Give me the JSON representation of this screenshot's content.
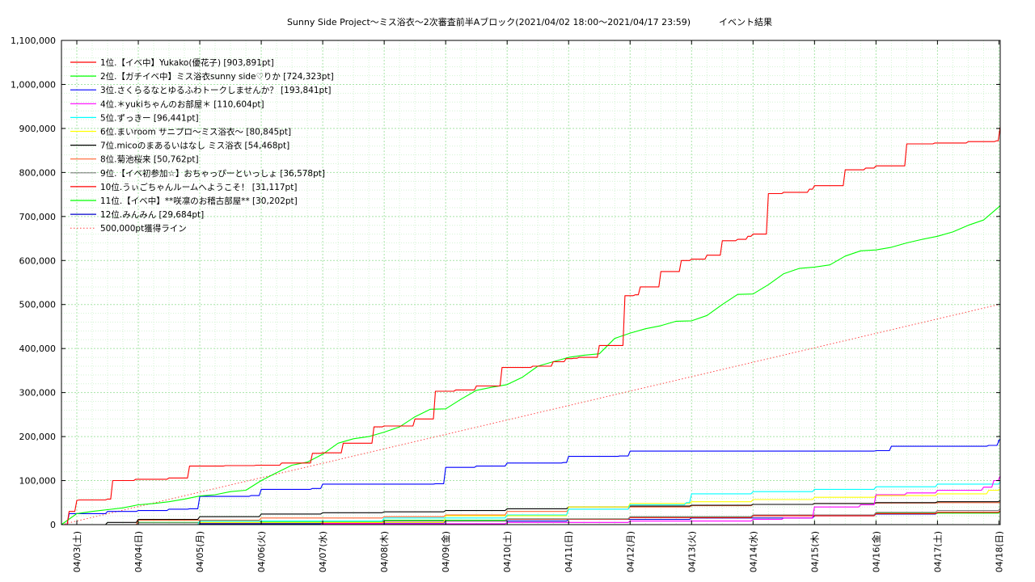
{
  "chart_data": {
    "type": "line",
    "title": "Sunny Side Project～ミス浴衣～2次審査前半Aブロック(2021/04/02 18:00～2021/04/17 23:59)          イベント結果",
    "xlabel": "",
    "ylabel": "",
    "ylim": [
      0,
      1100000
    ],
    "xlim": [
      "2021-04-02 18:00",
      "2021-04-18 00:30"
    ],
    "grid": true,
    "legend_position": "top-left",
    "y_ticks": [
      "0",
      "100,000",
      "200,000",
      "300,000",
      "400,000",
      "500,000",
      "600,000",
      "700,000",
      "800,000",
      "900,000",
      "1,000,000",
      "1,100,000"
    ],
    "x_ticks": [
      "04/03(土)",
      "04/04(日)",
      "04/05(月)",
      "04/06(火)",
      "04/07(水)",
      "04/08(木)",
      "04/09(金)",
      "04/10(土)",
      "04/11(日)",
      "04/12(月)",
      "04/13(火)",
      "04/14(水)",
      "04/15(木)",
      "04/16(金)",
      "04/17(土)",
      "04/18(日)"
    ],
    "x_tick_dates": [
      "2021-04-03",
      "2021-04-04",
      "2021-04-05",
      "2021-04-06",
      "2021-04-07",
      "2021-04-08",
      "2021-04-09",
      "2021-04-10",
      "2021-04-11",
      "2021-04-12",
      "2021-04-13",
      "2021-04-14",
      "2021-04-15",
      "2021-04-16",
      "2021-04-17",
      "2021-04-18"
    ],
    "series": [
      {
        "name": "1位.【イベ中】Yukako(優花子) [903,891pt]",
        "color": "#ff0000",
        "style": "step",
        "x": [
          "2021-04-02 18:00",
          "2021-04-02 21:00",
          "2021-04-03 00:00",
          "2021-04-03 01:00",
          "2021-04-03 12:00",
          "2021-04-03 14:00",
          "2021-04-03 23:00",
          "2021-04-04 12:00",
          "2021-04-04 20:00",
          "2021-04-05 10:00",
          "2021-04-05 22:00",
          "2021-04-06 08:00",
          "2021-04-06 20:00",
          "2021-04-07 00:00",
          "2021-04-07 08:00",
          "2021-04-07 20:00",
          "2021-04-08 00:00",
          "2021-04-08 12:00",
          "2021-04-08 20:00",
          "2021-04-09 04:00",
          "2021-04-09 12:00",
          "2021-04-09 22:00",
          "2021-04-10 10:00",
          "2021-04-10 18:00",
          "2021-04-10 23:00",
          "2021-04-11 02:00",
          "2021-04-11 04:00",
          "2021-04-11 12:00",
          "2021-04-11 22:00",
          "2021-04-12 02:00",
          "2021-04-12 04:00",
          "2021-04-12 12:00",
          "2021-04-12 20:00",
          "2021-04-13 00:00",
          "2021-04-13 06:00",
          "2021-04-13 12:00",
          "2021-04-13 18:00",
          "2021-04-13 22:00",
          "2021-04-14 00:00",
          "2021-04-14 06:00",
          "2021-04-14 12:00",
          "2021-04-14 22:00",
          "2021-04-15 00:00",
          "2021-04-15 12:00",
          "2021-04-15 20:00",
          "2021-04-16 00:00",
          "2021-04-16 12:00",
          "2021-04-16 23:00",
          "2021-04-17 12:00",
          "2021-04-17 23:00",
          "2021-04-18 00:30"
        ],
        "values": [
          0,
          30000,
          55000,
          56000,
          58000,
          100000,
          103000,
          106000,
          133000,
          134000,
          135000,
          140000,
          162000,
          163000,
          185000,
          222000,
          224000,
          240000,
          303000,
          306000,
          315000,
          357000,
          360000,
          370000,
          377000,
          378000,
          380000,
          407000,
          520000,
          522000,
          540000,
          575000,
          600000,
          603000,
          612000,
          645000,
          648000,
          655000,
          660000,
          752000,
          755000,
          762000,
          770000,
          806000,
          810000,
          815000,
          865000,
          867000,
          870000,
          872000,
          903891
        ]
      },
      {
        "name": "2位.【ガチイベ中】ミス浴衣sunny side♡りか [724,323pt]",
        "color": "#00ff00",
        "style": "smooth",
        "x": [
          "2021-04-02 18:00",
          "2021-04-03 00:00",
          "2021-04-03 06:00",
          "2021-04-03 12:00",
          "2021-04-03 18:00",
          "2021-04-04 00:00",
          "2021-04-04 06:00",
          "2021-04-04 12:00",
          "2021-04-04 18:00",
          "2021-04-05 00:00",
          "2021-04-05 06:00",
          "2021-04-05 12:00",
          "2021-04-05 18:00",
          "2021-04-06 00:00",
          "2021-04-06 06:00",
          "2021-04-06 12:00",
          "2021-04-06 18:00",
          "2021-04-07 00:00",
          "2021-04-07 06:00",
          "2021-04-07 12:00",
          "2021-04-07 18:00",
          "2021-04-08 00:00",
          "2021-04-08 06:00",
          "2021-04-08 12:00",
          "2021-04-08 18:00",
          "2021-04-09 00:00",
          "2021-04-09 06:00",
          "2021-04-09 12:00",
          "2021-04-09 18:00",
          "2021-04-10 00:00",
          "2021-04-10 06:00",
          "2021-04-10 12:00",
          "2021-04-10 18:00",
          "2021-04-11 00:00",
          "2021-04-11 06:00",
          "2021-04-11 12:00",
          "2021-04-11 18:00",
          "2021-04-12 00:00",
          "2021-04-12 06:00",
          "2021-04-12 12:00",
          "2021-04-12 18:00",
          "2021-04-13 00:00",
          "2021-04-13 06:00",
          "2021-04-13 12:00",
          "2021-04-13 18:00",
          "2021-04-14 00:00",
          "2021-04-14 06:00",
          "2021-04-14 12:00",
          "2021-04-14 18:00",
          "2021-04-15 00:00",
          "2021-04-15 06:00",
          "2021-04-15 12:00",
          "2021-04-15 18:00",
          "2021-04-16 00:00",
          "2021-04-16 06:00",
          "2021-04-16 12:00",
          "2021-04-16 18:00",
          "2021-04-17 00:00",
          "2021-04-17 06:00",
          "2021-04-17 12:00",
          "2021-04-17 18:00",
          "2021-04-18 00:30"
        ],
        "values": [
          0,
          25000,
          30000,
          34000,
          38000,
          45000,
          48000,
          52000,
          58000,
          65000,
          68000,
          75000,
          78000,
          100000,
          118000,
          135000,
          142000,
          160000,
          185000,
          195000,
          200000,
          210000,
          222000,
          245000,
          262000,
          263000,
          285000,
          305000,
          312000,
          318000,
          335000,
          360000,
          370000,
          380000,
          385000,
          388000,
          423000,
          435000,
          445000,
          452000,
          462000,
          463000,
          475000,
          500000,
          523000,
          524000,
          545000,
          570000,
          582000,
          585000,
          590000,
          610000,
          622000,
          624000,
          630000,
          640000,
          648000,
          655000,
          665000,
          680000,
          692000,
          724323
        ]
      },
      {
        "name": "3位.さくらるなとゆるふわトークしませんか？ [193,841pt]",
        "color": "#0000ff",
        "style": "step",
        "x": [
          "2021-04-02 18:00",
          "2021-04-02 21:00",
          "2021-04-03 12:00",
          "2021-04-04 00:00",
          "2021-04-04 12:00",
          "2021-04-04 20:00",
          "2021-04-05 00:00",
          "2021-04-05 20:00",
          "2021-04-06 00:00",
          "2021-04-06 20:00",
          "2021-04-07 00:00",
          "2021-04-08 20:00",
          "2021-04-09 00:00",
          "2021-04-09 12:00",
          "2021-04-10 00:00",
          "2021-04-10 22:00",
          "2021-04-11 00:00",
          "2021-04-11 20:00",
          "2021-04-12 00:00",
          "2021-04-16 00:00",
          "2021-04-16 06:00",
          "2021-04-17 20:00",
          "2021-04-18 00:00",
          "2021-04-18 00:30"
        ],
        "values": [
          0,
          25000,
          30000,
          32000,
          35000,
          36000,
          64000,
          66000,
          80000,
          82000,
          92000,
          93000,
          130000,
          133000,
          140000,
          141000,
          155000,
          156000,
          167000,
          168000,
          178000,
          180000,
          190000,
          193841
        ]
      },
      {
        "name": "4位.＊yukiちゃんのお部屋＊ [110,604pt]",
        "color": "#ff00ff",
        "style": "step",
        "x": [
          "2021-04-02 18:00",
          "2021-04-07 00:00",
          "2021-04-10 00:00",
          "2021-04-12 00:00",
          "2021-04-14 00:00",
          "2021-04-14 12:00",
          "2021-04-15 00:00",
          "2021-04-15 18:00",
          "2021-04-16 00:00",
          "2021-04-16 12:00",
          "2021-04-17 00:00",
          "2021-04-17 18:00",
          "2021-04-17 22:00",
          "2021-04-18 00:30"
        ],
        "values": [
          0,
          2000,
          5000,
          8000,
          12000,
          15000,
          40000,
          45000,
          68000,
          72000,
          78000,
          85000,
          100000,
          110604
        ]
      },
      {
        "name": "5位.ずっきー [96,441pt]",
        "color": "#00ffff",
        "style": "step",
        "x": [
          "2021-04-02 18:00",
          "2021-04-05 00:00",
          "2021-04-08 00:00",
          "2021-04-10 00:00",
          "2021-04-11 00:00",
          "2021-04-12 00:00",
          "2021-04-12 22:00",
          "2021-04-13 00:00",
          "2021-04-14 00:00",
          "2021-04-15 00:00",
          "2021-04-16 00:00",
          "2021-04-17 00:00",
          "2021-04-18 00:30"
        ],
        "values": [
          0,
          8000,
          15000,
          22000,
          35000,
          45000,
          50000,
          70000,
          75000,
          80000,
          86000,
          92000,
          96441
        ]
      },
      {
        "name": "6位.まいroom サニプロ～ミス浴衣～ [80,845pt]",
        "color": "#ffff00",
        "style": "step",
        "x": [
          "2021-04-02 18:00",
          "2021-04-05 00:00",
          "2021-04-09 00:00",
          "2021-04-11 00:00",
          "2021-04-12 00:00",
          "2021-04-13 00:00",
          "2021-04-14 00:00",
          "2021-04-15 00:00",
          "2021-04-16 00:00",
          "2021-04-17 00:00",
          "2021-04-17 20:00",
          "2021-04-18 00:30"
        ],
        "values": [
          0,
          5000,
          20000,
          40000,
          48000,
          52000,
          57000,
          62000,
          66000,
          70000,
          78000,
          80845
        ]
      },
      {
        "name": "7位.micoのまあるいはなし ミス浴衣 [54,468pt]",
        "color": "#000000",
        "style": "step",
        "x": [
          "2021-04-02 18:00",
          "2021-04-03 12:00",
          "2021-04-04 00:00",
          "2021-04-05 00:00",
          "2021-04-06 00:00",
          "2021-04-07 00:00",
          "2021-04-08 00:00",
          "2021-04-09 00:00",
          "2021-04-10 00:00",
          "2021-04-11 00:00",
          "2021-04-12 00:00",
          "2021-04-13 00:00",
          "2021-04-14 00:00",
          "2021-04-15 00:00",
          "2021-04-16 00:00",
          "2021-04-17 00:00",
          "2021-04-18 00:30"
        ],
        "values": [
          0,
          5000,
          12000,
          18000,
          24000,
          27000,
          29000,
          32000,
          36000,
          40000,
          42000,
          44000,
          46000,
          48000,
          50000,
          52000,
          54468
        ]
      },
      {
        "name": "8位.菊池桜来 [50,762pt]",
        "color": "#ff6633",
        "style": "step",
        "x": [
          "2021-04-02 18:00",
          "2021-04-04 00:00",
          "2021-04-06 00:00",
          "2021-04-08 00:00",
          "2021-04-09 00:00",
          "2021-04-10 00:00",
          "2021-04-11 00:00",
          "2021-04-12 00:00",
          "2021-04-13 00:00",
          "2021-04-14 00:00",
          "2021-04-15 00:00",
          "2021-04-16 00:00",
          "2021-04-17 00:00",
          "2021-04-18 00:30"
        ],
        "values": [
          0,
          10000,
          15000,
          18000,
          22000,
          30000,
          35000,
          40000,
          43000,
          46000,
          48000,
          49000,
          50000,
          50762
        ]
      },
      {
        "name": "9位.【イベ初参加☆】おちゃっぴーといっしょ [36,578pt]",
        "color": "#808080",
        "style": "step",
        "x": [
          "2021-04-02 18:00",
          "2021-04-04 00:00",
          "2021-04-07 00:00",
          "2021-04-10 00:00",
          "2021-04-12 00:00",
          "2021-04-14 00:00",
          "2021-04-16 00:00",
          "2021-04-17 00:00",
          "2021-04-18 00:30"
        ],
        "values": [
          0,
          4000,
          8000,
          13000,
          18000,
          22000,
          28000,
          32000,
          36578
        ]
      },
      {
        "name": "10位.うぃごちゃんルームへようこそ！ [31,117pt]",
        "color": "#ff0000",
        "style": "step",
        "x": [
          "2021-04-02 18:00",
          "2021-04-05 00:00",
          "2021-04-08 00:00",
          "2021-04-10 00:00",
          "2021-04-12 00:00",
          "2021-04-14 00:00",
          "2021-04-16 00:00",
          "2021-04-17 00:00",
          "2021-04-18 00:30"
        ],
        "values": [
          0,
          4000,
          8000,
          12000,
          16000,
          20000,
          25000,
          28000,
          31117
        ]
      },
      {
        "name": "11位.【イベ中】**咲凛のお稽古部屋** [30,202pt]",
        "color": "#00ff00",
        "style": "step",
        "x": [
          "2021-04-02 18:00",
          "2021-04-04 00:00",
          "2021-04-06 00:00",
          "2021-04-08 00:00",
          "2021-04-10 00:00",
          "2021-04-12 00:00",
          "2021-04-14 00:00",
          "2021-04-16 00:00",
          "2021-04-18 00:30"
        ],
        "values": [
          0,
          5000,
          7000,
          10000,
          13000,
          17000,
          21000,
          26000,
          30202
        ]
      },
      {
        "name": "12位.みんみん [29,684pt]",
        "color": "#0000cc",
        "style": "step",
        "x": [
          "2021-04-02 18:00",
          "2021-04-05 00:00",
          "2021-04-07 00:00",
          "2021-04-09 00:00",
          "2021-04-11 00:00",
          "2021-04-13 00:00",
          "2021-04-15 00:00",
          "2021-04-16 00:00",
          "2021-04-17 00:00",
          "2021-04-18 00:30"
        ],
        "values": [
          0,
          2000,
          4000,
          8000,
          12000,
          15000,
          20000,
          24000,
          27000,
          29684
        ]
      },
      {
        "name": "500,000pt獲得ライン",
        "color": "#ff4444",
        "style": "dotted",
        "x": [
          "2021-04-02 18:00",
          "2021-04-17 23:59"
        ],
        "values": [
          0,
          500000
        ]
      }
    ]
  }
}
